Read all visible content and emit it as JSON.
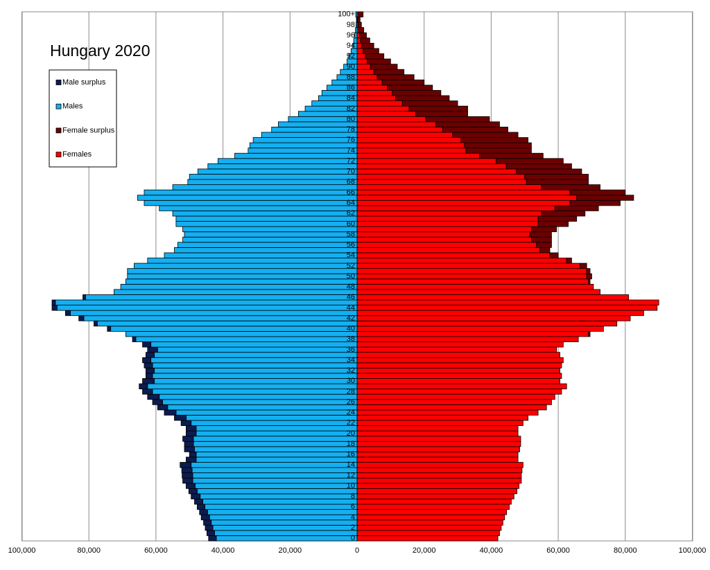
{
  "chart_data": {
    "type": "pyramid",
    "title": "Hungary 2020",
    "categories": [
      "0",
      null,
      "2",
      null,
      "4",
      null,
      "6",
      null,
      "8",
      null,
      "10",
      null,
      "12",
      null,
      "14",
      null,
      "16",
      null,
      "18",
      null,
      "20",
      null,
      "22",
      null,
      "24",
      null,
      "26",
      null,
      "28",
      null,
      "30",
      null,
      "32",
      null,
      "34",
      null,
      "36",
      null,
      "38",
      null,
      "40",
      null,
      "42",
      null,
      "44",
      null,
      "46",
      null,
      "48",
      null,
      "50",
      null,
      "52",
      null,
      "54",
      null,
      "56",
      null,
      "58",
      null,
      "60",
      null,
      "62",
      null,
      "64",
      null,
      "66",
      null,
      "68",
      null,
      "70",
      null,
      "72",
      null,
      "74",
      null,
      "76",
      null,
      "78",
      null,
      "80",
      null,
      "82",
      null,
      "84",
      null,
      "86",
      null,
      "88",
      null,
      "90",
      null,
      "92",
      null,
      "94",
      null,
      "96",
      null,
      "98",
      null,
      "100+"
    ],
    "series": [
      {
        "name": "Male surplus",
        "color": "#0b1c4f",
        "side": "left",
        "values": [
          2300,
          2300,
          2300,
          2300,
          2500,
          2400,
          2300,
          2500,
          2700,
          2500,
          2700,
          3000,
          3200,
          3100,
          3300,
          3000,
          2000,
          3000,
          2700,
          3200,
          3000,
          3000,
          3000,
          3500,
          3500,
          3000,
          3000,
          3500,
          3000,
          2500,
          3500,
          2000,
          2500,
          2500,
          2500,
          2500,
          3000,
          2500,
          1000,
          0,
          1000,
          1000,
          1500,
          1500,
          1500,
          1000,
          800,
          0,
          0,
          0,
          0,
          0,
          0,
          0,
          0,
          0,
          0,
          0,
          0,
          0,
          0,
          0,
          0,
          0,
          0,
          0,
          0,
          0,
          0,
          0,
          0,
          0,
          0,
          0,
          0,
          0,
          0,
          0,
          0,
          0,
          0,
          0,
          0,
          0,
          0,
          0,
          0,
          0,
          0,
          0,
          0,
          0,
          0,
          0,
          0,
          0,
          0,
          0,
          0,
          0,
          0
        ]
      },
      {
        "name": "Males",
        "color": "#14aff0",
        "side": "left",
        "values": [
          42000,
          42500,
          43000,
          43500,
          44000,
          44600,
          45400,
          46000,
          46800,
          47700,
          48300,
          49000,
          49000,
          49200,
          49500,
          48000,
          48000,
          48500,
          48800,
          48800,
          48000,
          48000,
          49500,
          51000,
          54000,
          56500,
          58000,
          59000,
          61000,
          62500,
          60500,
          61000,
          60500,
          61000,
          61500,
          60500,
          59500,
          61500,
          66000,
          69000,
          73500,
          77500,
          81500,
          85500,
          89500,
          90000,
          81000,
          72500,
          70500,
          69000,
          68500,
          68500,
          66500,
          62500,
          57500,
          54500,
          53500,
          52000,
          51500,
          52000,
          54000,
          54000,
          55000,
          59000,
          63500,
          65500,
          63500,
          55000,
          50500,
          50000,
          47500,
          44500,
          41500,
          36500,
          32500,
          32000,
          31000,
          28500,
          25500,
          23500,
          20500,
          17500,
          15500,
          13500,
          11500,
          10500,
          9000,
          7500,
          6000,
          5000,
          4000,
          3000,
          2500,
          1800,
          1300,
          1000,
          700,
          500,
          300,
          200,
          400
        ]
      },
      {
        "name": "Female surplus",
        "color": "#6b0000",
        "side": "right",
        "values": [
          0,
          0,
          0,
          0,
          0,
          0,
          0,
          0,
          0,
          0,
          0,
          0,
          0,
          0,
          0,
          0,
          0,
          0,
          0,
          0,
          0,
          0,
          0,
          0,
          0,
          0,
          0,
          0,
          0,
          0,
          0,
          0,
          0,
          0,
          0,
          0,
          0,
          0,
          0,
          500,
          0,
          0,
          0,
          0,
          0,
          0,
          0,
          0,
          0,
          500,
          1500,
          1000,
          2000,
          1500,
          2500,
          3000,
          4500,
          6000,
          6500,
          7500,
          9000,
          11500,
          13000,
          13000,
          15000,
          17000,
          16500,
          17500,
          18500,
          19000,
          19500,
          19500,
          20000,
          19000,
          19500,
          20000,
          20000,
          19500,
          19500,
          19000,
          19000,
          15500,
          17500,
          16500,
          16000,
          14500,
          13500,
          12500,
          11000,
          9000,
          8000,
          7000,
          5500,
          4700,
          3700,
          2800,
          2100,
          1500,
          1000,
          700,
          1400
        ]
      },
      {
        "name": "Females",
        "color": "#ff0000",
        "side": "right",
        "values": [
          42000,
          42500,
          43000,
          43500,
          44000,
          44600,
          45400,
          46000,
          46800,
          47700,
          48300,
          49000,
          49000,
          49200,
          49500,
          48000,
          48000,
          48500,
          48800,
          48800,
          48000,
          48000,
          49500,
          51000,
          54000,
          56500,
          58000,
          59000,
          61000,
          62500,
          60500,
          61000,
          60500,
          61000,
          61500,
          60500,
          59500,
          61500,
          66000,
          69000,
          73500,
          77500,
          81500,
          85500,
          89500,
          90000,
          81000,
          72500,
          70500,
          69000,
          68500,
          68500,
          66500,
          62500,
          57500,
          54500,
          53500,
          52000,
          51500,
          52000,
          54000,
          54000,
          55000,
          59000,
          63500,
          65500,
          63500,
          55000,
          50500,
          50000,
          47500,
          44500,
          41500,
          36500,
          32500,
          32000,
          31000,
          28500,
          25500,
          23500,
          20500,
          17500,
          15500,
          13500,
          11500,
          10500,
          9000,
          7500,
          6000,
          5000,
          4000,
          3000,
          2500,
          1800,
          1300,
          1000,
          700,
          500,
          300,
          200,
          400
        ]
      }
    ],
    "xlim": [
      0,
      100000
    ],
    "left_xticks": [
      {
        "value": 100000,
        "label": "100,000"
      },
      {
        "value": 80000,
        "label": "80,000"
      },
      {
        "value": 60000,
        "label": "60,000"
      },
      {
        "value": 40000,
        "label": "40,000"
      },
      {
        "value": 20000,
        "label": "20,000"
      }
    ],
    "right_xticks": [
      0,
      {
        "value": 20000,
        "label": "20,000"
      },
      {
        "value": 40000,
        "label": "40,000"
      },
      {
        "value": 60000,
        "label": "60,000"
      },
      {
        "value": 80000,
        "label": "80,000"
      },
      {
        "value": 100000,
        "label": "100,000"
      }
    ],
    "grid": true
  }
}
